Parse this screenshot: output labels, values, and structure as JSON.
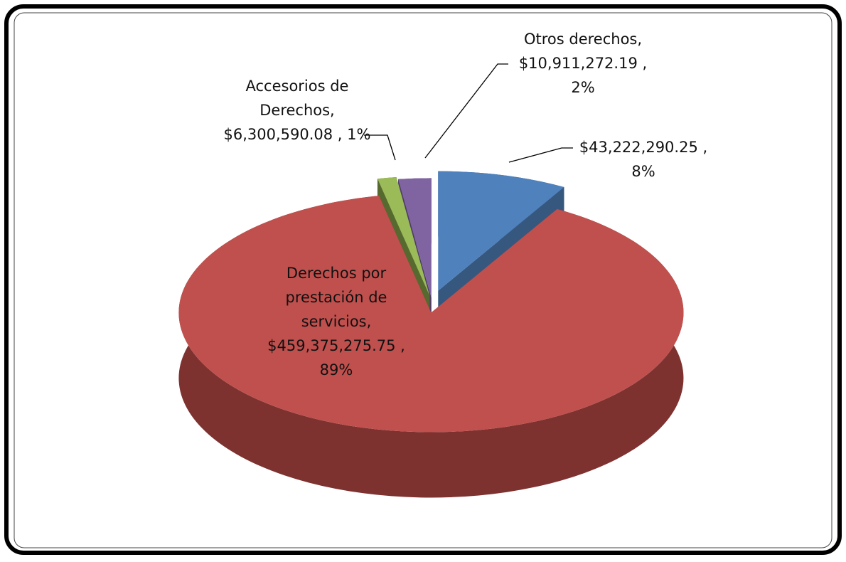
{
  "chart_data": {
    "type": "pie",
    "values": [
      43222290.25,
      459375275.75,
      6300590.08,
      10911272.19
    ],
    "value_labels": [
      [
        "$43,222,290.25 ,",
        "8%"
      ],
      [
        "Derechos por",
        "prestación de",
        "servicios,",
        "$459,375,275.75 ,",
        "89%"
      ],
      [
        "Accesorios de",
        "Derechos,",
        "$6,300,590.08 , 1%"
      ],
      [
        "Otros derechos,",
        "$10,911,272.19 ,",
        "2%"
      ]
    ],
    "colors": [
      "#4f81bd",
      "#c0504d",
      "#9bbb59",
      "#8064a2"
    ],
    "side_colors": [
      "#36587f",
      "#7d3230",
      "#56692f",
      "#4f3d66"
    ],
    "label_colors": [
      "#111111",
      "#ffffff",
      "#111111",
      "#111111"
    ],
    "explode": true,
    "legend": false
  }
}
